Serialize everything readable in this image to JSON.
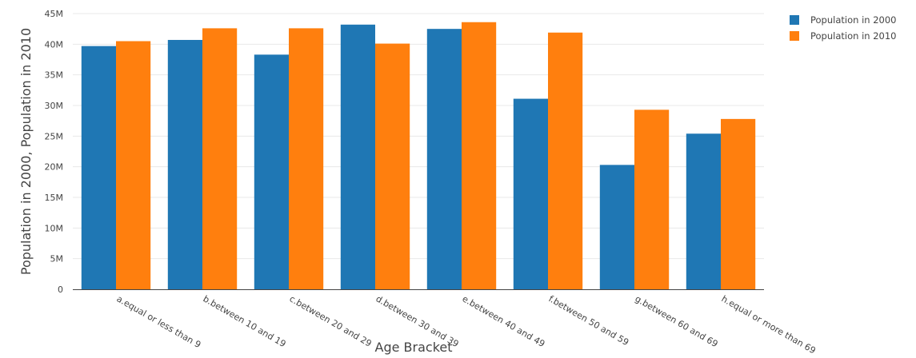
{
  "chart_data": {
    "type": "bar",
    "title": "",
    "xlabel": "Age Bracket",
    "ylabel": "Population in 2000, Population in 2010",
    "categories": [
      "a.equal or less than 9",
      "b.between 10 and 19",
      "c.between 20 and 29",
      "d.between 30 and 39",
      "e.between 40 and 49",
      "f.between 50 and 59",
      "g.between 60 and 69",
      "h.equal or more than 69"
    ],
    "series": [
      {
        "name": "Population in 2000",
        "color": "#1f77b4",
        "values": [
          39700000,
          40700000,
          38300000,
          43200000,
          42500000,
          31100000,
          20300000,
          25400000
        ]
      },
      {
        "name": "Population in 2010",
        "color": "#ff7f0e",
        "values": [
          40500000,
          42600000,
          42600000,
          40100000,
          43600000,
          41900000,
          29300000,
          27800000
        ]
      }
    ],
    "ylim": [
      0,
      45000000
    ],
    "yticks": [
      {
        "value": 0,
        "label": "0"
      },
      {
        "value": 5000000,
        "label": "5M"
      },
      {
        "value": 10000000,
        "label": "10M"
      },
      {
        "value": 15000000,
        "label": "15M"
      },
      {
        "value": 20000000,
        "label": "20M"
      },
      {
        "value": 25000000,
        "label": "25M"
      },
      {
        "value": 30000000,
        "label": "30M"
      },
      {
        "value": 35000000,
        "label": "35M"
      },
      {
        "value": 40000000,
        "label": "40M"
      },
      {
        "value": 45000000,
        "label": "45M"
      }
    ],
    "grid": true,
    "legend_position": "top-right"
  }
}
